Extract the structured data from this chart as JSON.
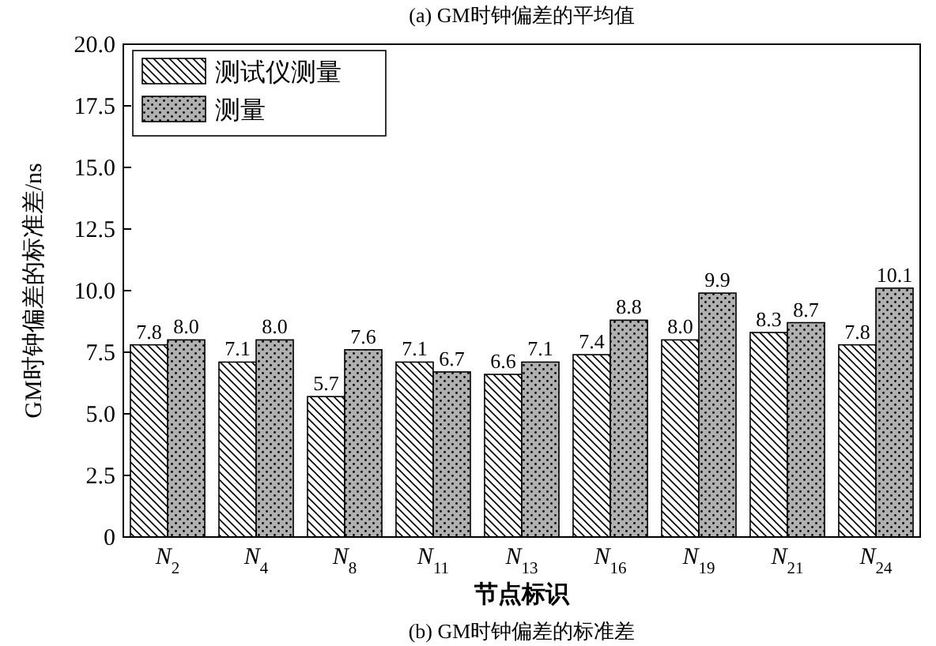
{
  "chart_data": {
    "type": "bar",
    "title": "(b) GM时钟偏差的标准差",
    "annotations": [
      "(a) GM时钟偏差的平均值"
    ],
    "xlabel": "节点标识",
    "ylabel": "GM时钟偏差的标准差/ns",
    "categories": [
      "N$_{2}$",
      "N$_{4}$",
      "N$_{8}$",
      "N$_{11}$",
      "N$_{13}$",
      "N$_{16}$",
      "N$_{19}$",
      "N$_{21}$",
      "N$_{24}$"
    ],
    "series": [
      {
        "name": "测试仪测量",
        "color": "#000000",
        "values": [
          7.8,
          7.1,
          5.7,
          7.1,
          6.6,
          7.4,
          8.0,
          8.3,
          7.8
        ],
        "value_labels": [
          "7.8",
          "7.1",
          "5.7",
          "7.1",
          "6.6",
          "7.4",
          "8.0",
          "8.3",
          "7.8"
        ]
      },
      {
        "name": "测量",
        "color": "#000000",
        "values": [
          8.0,
          8.0,
          7.6,
          6.7,
          7.1,
          8.8,
          9.9,
          8.7,
          10.1
        ],
        "value_labels": [
          "8.0",
          "8.0",
          "7.6",
          "6.7",
          "7.1",
          "8.8",
          "9.9",
          "8.7",
          "10.1"
        ]
      }
    ],
    "ylim": [
      0,
      20
    ],
    "yticks": [
      0,
      2.5,
      {
        "value": 5,
        "label": "5.0"
      },
      7.5,
      {
        "value": 10,
        "label": "10.0"
      },
      12.5,
      {
        "value": 15,
        "label": "15.0"
      },
      17.5,
      {
        "value": 20,
        "label": "20.0"
      }
    ],
    "grid": false,
    "legend": "top left"
  }
}
